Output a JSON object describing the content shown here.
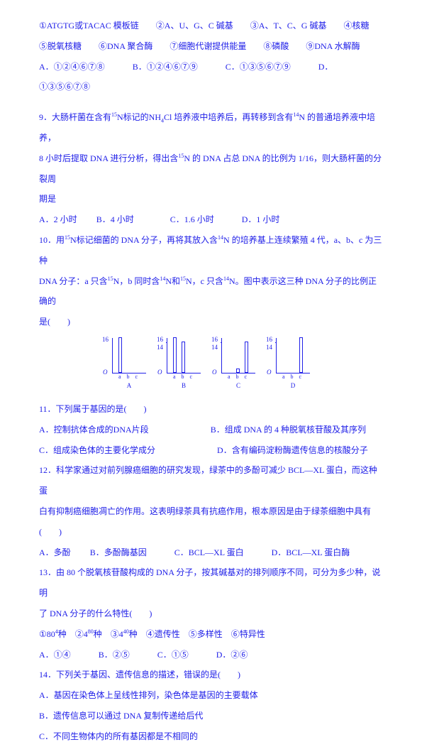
{
  "top": {
    "l1": "①ATGTG或TACAC 模板链　　②A、U、G、C 碱基　　③A、T、C、G 碱基　　④核糖",
    "l2": "⑤脱氧核糖　　⑥DNA 聚合酶　　⑦细胞代谢提供能量　　⑧磷酸　　⑨DNA 水解酶",
    "optA": "A．①②④⑥⑦⑧",
    "optB": "B．①②④⑥⑦⑨",
    "optC": "C．①③⑤⑥⑦⑨",
    "optD": "D．①③⑤⑥⑦⑧"
  },
  "q9": {
    "l1": "9．大肠杆菌在含有",
    "l1b": "N标记的NH",
    "l1c": "Cl 培养液中培养后，再转移到含有",
    "l1d": "N 的普通培养液中培养，",
    "l2": "8 小时后提取 DNA 进行分析，得出含",
    "l2b": "N 的 DNA 占总 DNA 的比例为 1/16，则大肠杆菌的分裂周",
    "l3": "期是",
    "optA": "A．2 小时",
    "optB": "B．4 小时",
    "optC": "C．1.6 小时",
    "optD": "D．1 小时"
  },
  "q10": {
    "l1a": "10．用",
    "l1b": "N标记细菌的 DNA 分子，再将其放入含",
    "l1c": "N 的培养基上连续繁殖 4 代，a、b、c 为三种",
    "l2a": "DNA 分子：a 只含",
    "l2b": "N，b 同时含",
    "l2c": "N和",
    "l2d": "N，c 只含",
    "l2e": "N。图中表示这三种 DNA 分子的比例正确的",
    "l3": "是(　　)"
  },
  "charts": {
    "ymax": "16",
    "y14": "14",
    "zero": "O",
    "xlabel": "a b c",
    "labels": [
      "A",
      "B",
      "C",
      "D"
    ],
    "A": {
      "a": 50,
      "b": 0,
      "c": 0
    },
    "B": {
      "a": 50,
      "b": 44,
      "c": 0
    },
    "C": {
      "a": 0,
      "b": 6,
      "c": 44
    },
    "D": {
      "a": 0,
      "b": 0,
      "c": 50
    },
    "bar_border": "#2020e8"
  },
  "q11": {
    "l1": "11．下列属于基因的是(　　)",
    "optA": "A．控制抗体合成的DNA片段",
    "optB": "B．组成 DNA 的 4 种脱氧核苷酸及其序列",
    "optC": "C．组成染色体的主要化学成分",
    "optD": "D．含有编码淀粉酶遗传信息的核酸分子"
  },
  "q12": {
    "l1": "12．科学家通过对前列腺癌细胞的研究发现，绿茶中的多酚可减少 BCL—XL 蛋白，而这种蛋",
    "l2": "白有抑制癌细胞凋亡的作用。这表明绿茶具有抗癌作用，根本原因是由于绿茶细胞中具有",
    "l3": "(　　)",
    "optA": "A．多酚",
    "optB": "B．多酚酶基因",
    "optC": "C．BCL—XL 蛋白",
    "optD": "D．BCL—XL 蛋白酶"
  },
  "q13": {
    "l1": "13．由 80 个脱氧核苷酸构成的 DNA 分子，按其碱基对的排列顺序不同，可分为多少种，说明",
    "l2": "了 DNA 分子的什么特性(　　)",
    "opts": "①80",
    "opts2": "种　②4",
    "opts3": "种　③4",
    "opts4": "种　④遗传性　⑤多样性　⑥特异性",
    "optA": "A．①④",
    "optB": "B．②⑤",
    "optC": "C．①⑤",
    "optD": "D．②⑥"
  },
  "q14": {
    "l1": "14．下列关于基因、遗传信息的描述，错误的是(　　)",
    "optA": "A．基因在染色体上呈线性排列，染色体是基因的主要载体",
    "optB": "B．遗传信息可以通过 DNA 复制传递给后代",
    "optC": "C．不同生物体内的所有基因都是不相同的"
  }
}
